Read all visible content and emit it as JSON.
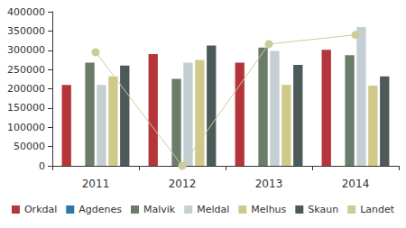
{
  "chart_data": {
    "type": "bar",
    "categories": [
      "2011",
      "2012",
      "2013",
      "2014"
    ],
    "series": [
      {
        "name": "Orkdal",
        "type": "bar",
        "color": "#b5363a",
        "values": [
          210000,
          290000,
          268000,
          301000
        ]
      },
      {
        "name": "Agdenes",
        "type": "bar",
        "color": "#2e75a8",
        "values": [
          null,
          null,
          null,
          null
        ]
      },
      {
        "name": "Malvik",
        "type": "bar",
        "color": "#6b7c6b",
        "values": [
          268000,
          226000,
          307000,
          287000
        ]
      },
      {
        "name": "Meldal",
        "type": "bar",
        "color": "#c3cfd2",
        "values": [
          210000,
          268000,
          298000,
          360000
        ]
      },
      {
        "name": "Melhus",
        "type": "bar",
        "color": "#cfc98a",
        "values": [
          232000,
          275000,
          210000,
          208000
        ]
      },
      {
        "name": "Skaun",
        "type": "bar",
        "color": "#4d5a5a",
        "values": [
          260000,
          312000,
          262000,
          232000
        ]
      },
      {
        "name": "Landet",
        "type": "line",
        "color": "#cccc99",
        "marker": "circle",
        "values": [
          295000,
          0,
          316000,
          340000
        ]
      }
    ],
    "ylim": [
      0,
      400000
    ],
    "yticks": [
      0,
      50000,
      100000,
      150000,
      200000,
      250000,
      300000,
      350000,
      400000
    ],
    "grid": false,
    "legend": "bottom"
  }
}
